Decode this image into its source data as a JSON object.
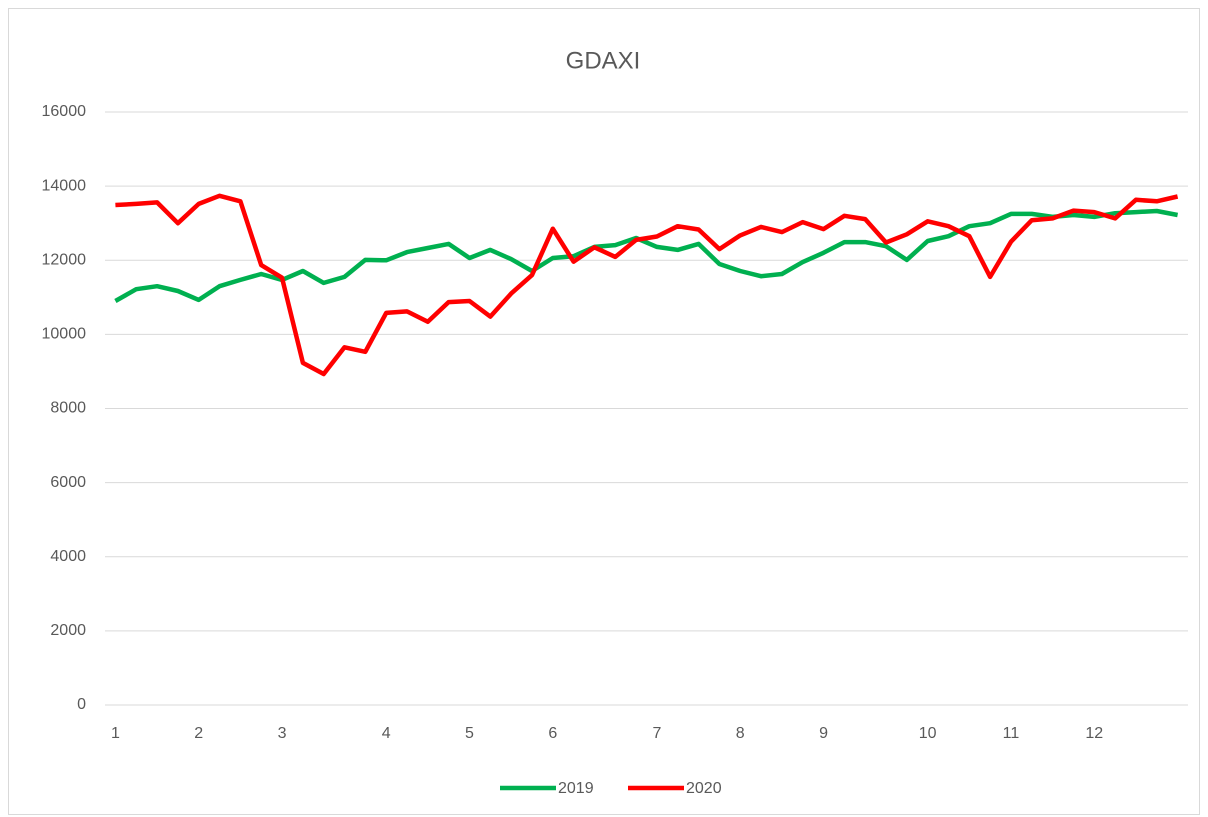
{
  "chart_data": {
    "type": "line",
    "title": "GDAXI",
    "categories": [
      "1",
      null,
      null,
      null,
      "2",
      null,
      null,
      null,
      "3",
      null,
      null,
      null,
      null,
      "4",
      null,
      null,
      null,
      "5",
      null,
      null,
      null,
      "6",
      null,
      null,
      null,
      null,
      "7",
      null,
      null,
      null,
      "8",
      null,
      null,
      null,
      "9",
      null,
      null,
      null,
      null,
      "10",
      null,
      null,
      null,
      "11",
      null,
      null,
      null,
      "12",
      null,
      null,
      null,
      null
    ],
    "series": [
      {
        "name": "2019",
        "color": "#00b050",
        "values": [
          10900,
          11220,
          11300,
          11170,
          10930,
          11300,
          11470,
          11630,
          11470,
          11710,
          11390,
          11550,
          12010,
          12000,
          12220,
          12330,
          12440,
          12060,
          12280,
          12030,
          11710,
          12060,
          12110,
          12360,
          12410,
          12600,
          12360,
          12280,
          12440,
          11900,
          11710,
          11570,
          11630,
          11950,
          12200,
          12490,
          12490,
          12380,
          12010,
          12520,
          12650,
          12920,
          13000,
          13250,
          13250,
          13170,
          13220,
          13170,
          13270,
          13300,
          13330,
          13220
        ]
      },
      {
        "name": "2020",
        "color": "#ff0000",
        "values": [
          13490,
          13520,
          13560,
          13000,
          13520,
          13740,
          13590,
          11870,
          11530,
          9230,
          8930,
          9650,
          9530,
          10580,
          10620,
          10340,
          10870,
          10900,
          10480,
          11100,
          11600,
          12850,
          11960,
          12350,
          12090,
          12550,
          12640,
          12920,
          12830,
          12300,
          12670,
          12900,
          12760,
          13030,
          12840,
          13200,
          13110,
          12480,
          12700,
          13050,
          12920,
          12650,
          11550,
          12500,
          13080,
          13130,
          13340,
          13300,
          13130,
          13630,
          13590,
          13720
        ]
      }
    ],
    "ylim": [
      0,
      16000
    ],
    "yticks": [
      0,
      2000,
      4000,
      6000,
      8000,
      10000,
      12000,
      14000,
      16000
    ],
    "grid": true,
    "legend": "bottom"
  }
}
